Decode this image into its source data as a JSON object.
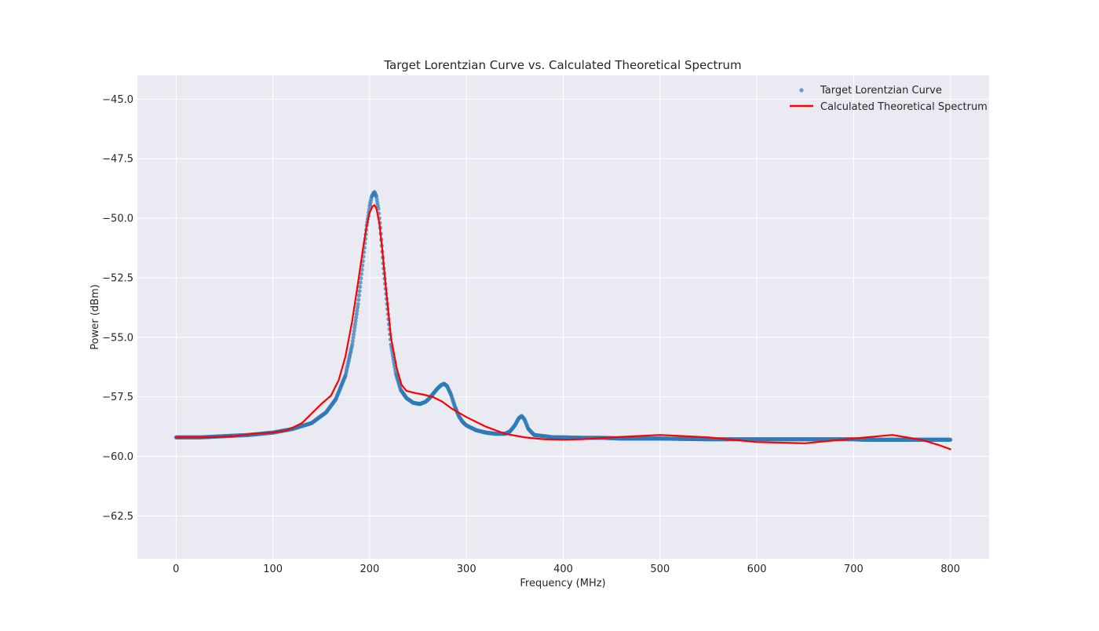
{
  "chart_data": {
    "type": "line",
    "title": "Target Lorentzian Curve vs. Calculated Theoretical Spectrum",
    "xlabel": "Frequency (MHz)",
    "ylabel": "Power (dBm)",
    "xlim": [
      -40,
      840
    ],
    "ylim": [
      -64.3,
      -44.0
    ],
    "xticks": [
      0,
      100,
      200,
      300,
      400,
      500,
      600,
      700,
      800
    ],
    "xtick_labels": [
      "0",
      "100",
      "200",
      "300",
      "400",
      "500",
      "600",
      "700",
      "800"
    ],
    "yticks": [
      -45.0,
      -47.5,
      -50.0,
      -52.5,
      -55.0,
      -57.5,
      -60.0,
      -62.5
    ],
    "ytick_labels": [
      "−45.0",
      "−47.5",
      "−50.0",
      "−52.5",
      "−55.0",
      "−57.5",
      "−60.0",
      "−62.5"
    ],
    "grid": true,
    "legend_position": "top-right",
    "series": [
      {
        "name": "Target Lorentzian Curve",
        "kind": "scatter",
        "color": "#2f7bb8",
        "x": [
          0,
          25,
          50,
          75,
          100,
          120,
          140,
          155,
          165,
          175,
          182,
          188,
          193,
          197,
          200,
          202,
          204,
          205,
          207,
          209,
          211,
          214,
          218,
          222,
          227,
          232,
          238,
          245,
          252,
          258,
          262,
          266,
          270,
          274,
          277,
          280,
          284,
          288,
          292,
          296,
          300,
          310,
          320,
          330,
          340,
          345,
          350,
          354,
          357,
          360,
          364,
          370,
          380,
          390,
          400,
          420,
          440,
          460,
          500,
          550,
          600,
          650,
          700,
          710,
          750,
          800
        ],
        "y": [
          -59.2,
          -59.2,
          -59.15,
          -59.1,
          -59.0,
          -58.85,
          -58.6,
          -58.15,
          -57.6,
          -56.6,
          -55.3,
          -53.6,
          -51.8,
          -50.3,
          -49.5,
          -49.1,
          -48.95,
          -48.9,
          -49.1,
          -49.6,
          -50.4,
          -51.9,
          -53.6,
          -55.3,
          -56.5,
          -57.2,
          -57.55,
          -57.75,
          -57.8,
          -57.7,
          -57.55,
          -57.35,
          -57.15,
          -57.0,
          -56.95,
          -57.05,
          -57.4,
          -57.9,
          -58.3,
          -58.55,
          -58.7,
          -58.9,
          -59.0,
          -59.05,
          -59.05,
          -58.95,
          -58.7,
          -58.4,
          -58.3,
          -58.45,
          -58.85,
          -59.1,
          -59.15,
          -59.2,
          -59.2,
          -59.22,
          -59.22,
          -59.25,
          -59.25,
          -59.28,
          -59.28,
          -59.28,
          -59.28,
          -59.3,
          -59.3,
          -59.3
        ]
      },
      {
        "name": "Calculated Theoretical Spectrum",
        "kind": "line",
        "color": "#ff0000",
        "x": [
          0,
          30,
          60,
          80,
          100,
          115,
          130,
          140,
          150,
          160,
          168,
          175,
          182,
          188,
          193,
          197,
          200,
          203,
          205,
          207,
          210,
          213,
          217,
          222,
          228,
          233,
          238,
          243,
          248,
          255,
          265,
          275,
          285,
          300,
          320,
          340,
          360,
          380,
          400,
          420,
          450,
          500,
          550,
          600,
          650,
          700,
          740,
          770,
          790,
          800
        ],
        "y": [
          -59.2,
          -59.2,
          -59.15,
          -59.05,
          -59.0,
          -58.9,
          -58.6,
          -58.2,
          -57.8,
          -57.45,
          -56.8,
          -55.8,
          -54.3,
          -52.7,
          -51.3,
          -50.3,
          -49.75,
          -49.5,
          -49.45,
          -49.6,
          -50.2,
          -51.3,
          -53.0,
          -55.0,
          -56.3,
          -57.0,
          -57.25,
          -57.3,
          -57.35,
          -57.4,
          -57.5,
          -57.7,
          -58.0,
          -58.35,
          -58.75,
          -59.05,
          -59.2,
          -59.28,
          -59.3,
          -59.28,
          -59.2,
          -59.1,
          -59.2,
          -59.4,
          -59.45,
          -59.25,
          -59.1,
          -59.3,
          -59.55,
          -59.7
        ]
      }
    ]
  }
}
